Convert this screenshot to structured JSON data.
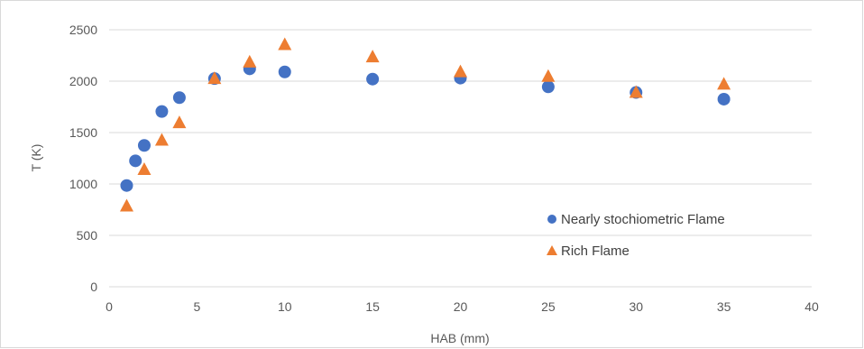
{
  "chart_data": {
    "type": "scatter",
    "title": "",
    "xlabel": "HAB (mm)",
    "ylabel": "T (K)",
    "xlim": [
      0,
      40
    ],
    "ylim": [
      0,
      2500
    ],
    "xticks": [
      0,
      5,
      10,
      15,
      20,
      25,
      30,
      35,
      40
    ],
    "yticks": [
      0,
      500,
      1000,
      1500,
      2000,
      2500
    ],
    "xtick_labels": [
      "0",
      "5",
      "10",
      "15",
      "20",
      "25",
      "30",
      "35",
      "40"
    ],
    "ytick_labels": [
      "0",
      "500",
      "1000",
      "1500",
      "2000",
      "2500"
    ],
    "grid": "horizontal",
    "legend": "bottom-right",
    "series": [
      {
        "name": "Nearly stochiometric Flame",
        "marker": "circle",
        "color": "#4472c4",
        "x": [
          1,
          1.5,
          2,
          3,
          4,
          6,
          8,
          10,
          15,
          20,
          25,
          30,
          35
        ],
        "y": [
          985,
          1225,
          1375,
          1705,
          1840,
          2025,
          2120,
          2090,
          2020,
          2030,
          1945,
          1890,
          1825
        ]
      },
      {
        "name": "Rich Flame",
        "marker": "triangle",
        "color": "#ed7d31",
        "x": [
          1,
          2,
          3,
          4,
          6,
          8,
          10,
          15,
          20,
          25,
          30,
          35
        ],
        "y": [
          790,
          1145,
          1430,
          1600,
          2030,
          2190,
          2360,
          2240,
          2095,
          2050,
          1895,
          1975
        ]
      }
    ]
  }
}
